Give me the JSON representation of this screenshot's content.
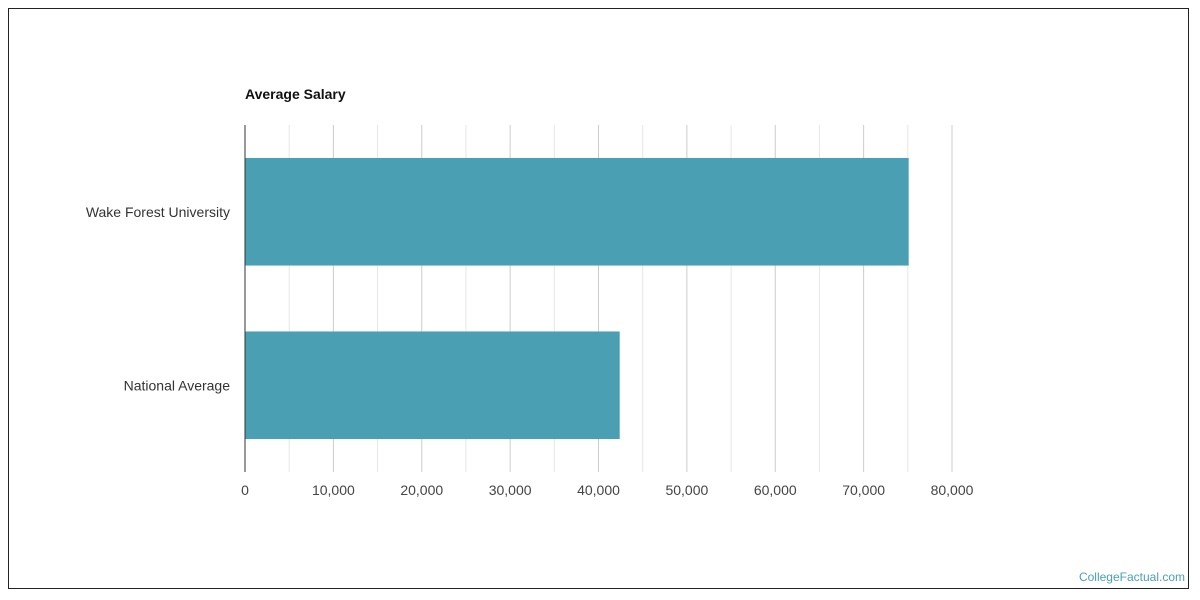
{
  "watermark": "CollegeFactual.com",
  "colors": {
    "bar": "#4aa0b2",
    "grid_major": "#cccccc",
    "grid_minor": "#e6e6e6",
    "axis": "#333333"
  },
  "chart_data": {
    "type": "bar",
    "orientation": "horizontal",
    "title": "Average Salary",
    "categories": [
      "Wake Forest University",
      "National Average"
    ],
    "values": [
      75100,
      42400
    ],
    "xlim": [
      0,
      80000
    ],
    "xticks": [
      0,
      10000,
      20000,
      30000,
      40000,
      50000,
      60000,
      70000,
      80000
    ],
    "xtick_labels": [
      "0",
      "10,000",
      "20,000",
      "30,000",
      "40,000",
      "50,000",
      "60,000",
      "70,000",
      "80,000"
    ],
    "grid": true,
    "xlabel": "",
    "ylabel": ""
  }
}
